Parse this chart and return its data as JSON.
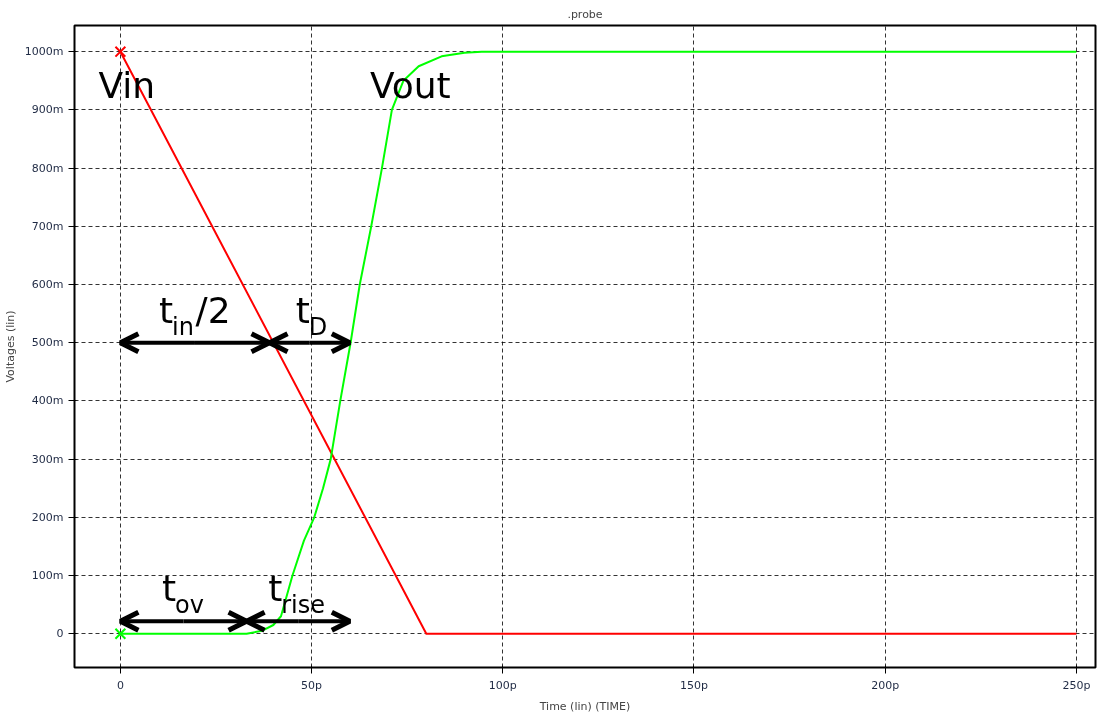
{
  "chart_data": {
    "type": "line",
    "title": ".probe",
    "xlabel": "Time (lin) (TIME)",
    "ylabel": "Voltages (lin)",
    "series": [
      {
        "name": "Vin",
        "color": "#ff0000",
        "marker": "none",
        "x": [
          0,
          80,
          250
        ],
        "values": [
          1000,
          0,
          0
        ]
      },
      {
        "name": "Vout",
        "color": "#00ff00",
        "marker": "none",
        "x": [
          0,
          33,
          37,
          40,
          42,
          45,
          48,
          50.7,
          53,
          55,
          57.5,
          60.2,
          62.6,
          65.6,
          68.4,
          71,
          74,
          78,
          84,
          90,
          94.5,
          250
        ],
        "values": [
          0,
          0,
          5,
          15,
          30,
          100,
          160,
          200,
          250,
          300,
          400,
          500,
          600,
          700,
          800,
          900,
          950,
          975,
          992,
          998,
          1000,
          1000
        ]
      },
      {
        "type": "scatter",
        "color": "#ff0000",
        "x": [
          0
        ],
        "values": [
          1000
        ]
      },
      {
        "type": "scatter",
        "color": "#00ff00",
        "x": [
          0
        ],
        "values": [
          0
        ]
      }
    ],
    "marker": "cross",
    "line_style": "solid",
    "grid": true,
    "xlim": [
      -12,
      255
    ],
    "ylim": [
      -58,
      1045
    ],
    "xticks": [
      {
        "value": 0,
        "label": "0"
      },
      {
        "value": 50,
        "label": "50p"
      },
      {
        "value": 100,
        "label": "100p"
      },
      {
        "value": 150,
        "label": "150p"
      },
      {
        "value": 200,
        "label": "200p"
      },
      {
        "value": 250,
        "label": "250p"
      }
    ],
    "yticks": [
      {
        "value": 0,
        "label": "0"
      },
      {
        "value": 100,
        "label": "100m"
      },
      {
        "value": 200,
        "label": "200m"
      },
      {
        "value": 300,
        "label": "300m"
      },
      {
        "value": 400,
        "label": "400m"
      },
      {
        "value": 500,
        "label": "500m"
      },
      {
        "value": 600,
        "label": "600m"
      },
      {
        "value": 700,
        "label": "700m"
      },
      {
        "value": 800,
        "label": "800m"
      },
      {
        "value": 900,
        "label": "900m"
      },
      {
        "value": 1000,
        "label": "1000m"
      }
    ],
    "annotations": [
      {
        "text": "t$_{in}$/2",
        "x": 39,
        "y": 500
      },
      {
        "text": "t$_{D}$",
        "x": 60,
        "y": 500
      },
      {
        "text": "t$_{ov}$",
        "x": 33,
        "y": 0
      },
      "t$_{rise}$"
    ]
  }
}
